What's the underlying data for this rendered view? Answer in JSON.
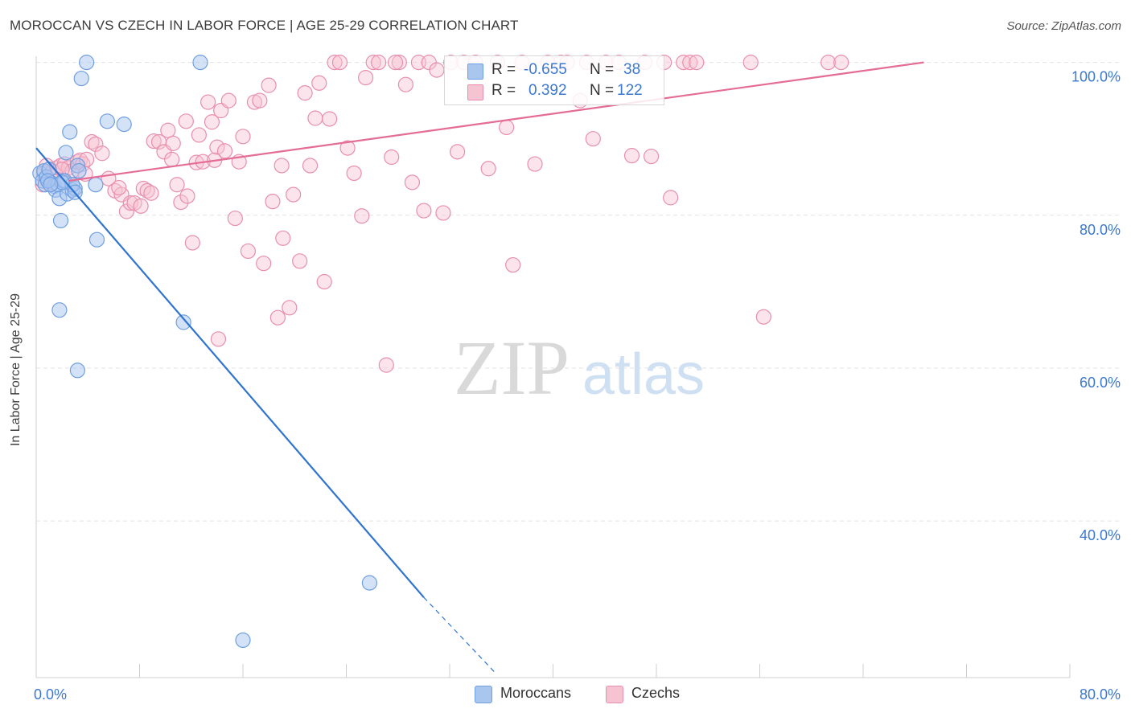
{
  "header": {
    "title": "MOROCCAN VS CZECH IN LABOR FORCE | AGE 25-29 CORRELATION CHART",
    "source": "Source: ZipAtlas.com"
  },
  "legend_box": {
    "rows": [
      {
        "r_label": "R =",
        "r_value": "-0.655",
        "n_label": "N =",
        "n_value": "38"
      },
      {
        "r_label": "R =",
        "r_value": "0.392",
        "n_label": "N =",
        "n_value": "122"
      }
    ]
  },
  "bottom_legend": {
    "moroccans": "Moroccans",
    "czechs": "Czechs"
  },
  "colors": {
    "moroccans_fill": "#a9c6ef",
    "moroccans_stroke": "#6f9fe0",
    "moroccans_line": "#2f74d0",
    "czechs_fill": "#f6c3d3",
    "czechs_stroke": "#e88fae",
    "czechs_line": "#e46c96",
    "axis_text": "#3b78d0",
    "watermark": "#d9d9d9"
  },
  "watermark": {
    "left": "ZIP",
    "right": "atlas"
  },
  "chart_data": {
    "type": "scatter",
    "title": "MOROCCAN VS CZECH IN LABOR FORCE | AGE 25-29 CORRELATION CHART",
    "xlabel": "",
    "ylabel": "In Labor Force | Age 25-29",
    "xlim": [
      0,
      80
    ],
    "ylim": [
      19.5,
      100.8
    ],
    "x_tick_labels": [
      {
        "value": 0,
        "label": "0.0%"
      },
      {
        "value": 80,
        "label": "80.0%"
      }
    ],
    "y_tick_labels": [
      {
        "value": 40,
        "label": "40.0%"
      },
      {
        "value": 60,
        "label": "60.0%"
      },
      {
        "value": 80,
        "label": "80.0%"
      },
      {
        "value": 100,
        "label": "100.0%"
      }
    ],
    "x_minor_ticks": [
      8,
      16,
      24,
      32,
      40,
      48,
      56,
      64,
      72,
      80
    ],
    "grid": true,
    "series": [
      {
        "name": "Moroccans",
        "r": -0.655,
        "n": 38,
        "trend": {
          "x1": 0,
          "y1": 88.8,
          "x2": 30,
          "y2": 30,
          "dash_to_x": 35.6,
          "dash_to_y": 20
        },
        "points": [
          [
            0.3,
            85.5
          ],
          [
            0.5,
            84.5
          ],
          [
            0.6,
            85.8
          ],
          [
            0.7,
            84.0
          ],
          [
            0.8,
            85.0
          ],
          [
            1.0,
            86.0
          ],
          [
            1.2,
            84.2
          ],
          [
            1.4,
            83.8
          ],
          [
            1.5,
            83.3
          ],
          [
            1.7,
            84.0
          ],
          [
            1.8,
            82.2
          ],
          [
            1.9,
            79.3
          ],
          [
            2.1,
            84.5
          ],
          [
            2.2,
            84.5
          ],
          [
            2.3,
            88.2
          ],
          [
            2.4,
            82.8
          ],
          [
            2.6,
            90.9
          ],
          [
            2.8,
            83.3
          ],
          [
            3.0,
            83.5
          ],
          [
            3.2,
            86.5
          ],
          [
            3.3,
            85.8
          ],
          [
            3.5,
            97.9
          ],
          [
            3.9,
            100.0
          ],
          [
            4.6,
            84.0
          ],
          [
            4.7,
            76.8
          ],
          [
            5.5,
            92.3
          ],
          [
            6.8,
            91.9
          ],
          [
            12.7,
            100.0
          ],
          [
            11.4,
            66.0
          ],
          [
            1.8,
            67.6
          ],
          [
            3.2,
            59.7
          ],
          [
            2.8,
            84.0
          ],
          [
            25.8,
            31.9
          ],
          [
            16.0,
            24.4
          ],
          [
            0.9,
            84.5
          ],
          [
            2.0,
            84.3
          ],
          [
            3.0,
            83.0
          ],
          [
            1.1,
            84.0
          ]
        ]
      },
      {
        "name": "Czechs",
        "r": 0.392,
        "n": 122,
        "trend": {
          "x1": 2.5,
          "y1": 84.5,
          "x2": 68.7,
          "y2": 100.0
        },
        "points": [
          [
            0.5,
            84.0
          ],
          [
            0.6,
            85.5
          ],
          [
            0.8,
            86.5
          ],
          [
            1.0,
            86.0
          ],
          [
            1.3,
            85.8
          ],
          [
            1.6,
            86.2
          ],
          [
            1.9,
            86.5
          ],
          [
            2.2,
            86.7
          ],
          [
            2.5,
            86.2
          ],
          [
            2.8,
            85.8
          ],
          [
            3.2,
            87.0
          ],
          [
            3.4,
            87.2
          ],
          [
            3.6,
            86.7
          ],
          [
            3.9,
            87.3
          ],
          [
            4.3,
            89.6
          ],
          [
            4.6,
            89.3
          ],
          [
            5.1,
            88.1
          ],
          [
            5.6,
            84.8
          ],
          [
            6.1,
            83.2
          ],
          [
            6.6,
            82.7
          ],
          [
            7.0,
            80.5
          ],
          [
            7.3,
            81.6
          ],
          [
            7.6,
            81.6
          ],
          [
            8.1,
            81.2
          ],
          [
            8.3,
            83.5
          ],
          [
            8.6,
            83.2
          ],
          [
            8.9,
            82.9
          ],
          [
            9.1,
            89.7
          ],
          [
            9.5,
            89.6
          ],
          [
            9.9,
            88.3
          ],
          [
            10.2,
            91.1
          ],
          [
            10.5,
            87.3
          ],
          [
            10.6,
            89.4
          ],
          [
            10.9,
            84.0
          ],
          [
            11.2,
            81.7
          ],
          [
            11.6,
            92.3
          ],
          [
            11.7,
            82.5
          ],
          [
            12.1,
            76.4
          ],
          [
            12.4,
            86.9
          ],
          [
            12.6,
            90.5
          ],
          [
            12.9,
            87.0
          ],
          [
            13.3,
            94.8
          ],
          [
            13.6,
            92.2
          ],
          [
            14.0,
            88.9
          ],
          [
            14.3,
            93.7
          ],
          [
            14.6,
            88.4
          ],
          [
            14.9,
            95.0
          ],
          [
            15.4,
            79.6
          ],
          [
            15.7,
            87.0
          ],
          [
            16.0,
            90.3
          ],
          [
            16.4,
            75.3
          ],
          [
            16.9,
            94.8
          ],
          [
            17.3,
            95.0
          ],
          [
            17.6,
            73.7
          ],
          [
            18.0,
            97.0
          ],
          [
            18.3,
            81.8
          ],
          [
            18.7,
            66.6
          ],
          [
            19.1,
            77.0
          ],
          [
            19.6,
            67.9
          ],
          [
            19.9,
            82.7
          ],
          [
            20.4,
            74.0
          ],
          [
            20.8,
            96.0
          ],
          [
            21.2,
            86.5
          ],
          [
            21.6,
            92.7
          ],
          [
            21.9,
            97.3
          ],
          [
            22.3,
            71.3
          ],
          [
            22.7,
            92.6
          ],
          [
            23.1,
            100.0
          ],
          [
            23.5,
            100.0
          ],
          [
            24.1,
            88.8
          ],
          [
            24.6,
            85.5
          ],
          [
            25.2,
            79.9
          ],
          [
            25.5,
            98.0
          ],
          [
            26.1,
            100.0
          ],
          [
            26.5,
            100.0
          ],
          [
            27.1,
            60.4
          ],
          [
            27.5,
            87.6
          ],
          [
            28.1,
            100.0
          ],
          [
            28.6,
            97.1
          ],
          [
            29.1,
            84.3
          ],
          [
            29.6,
            100.0
          ],
          [
            30.0,
            80.6
          ],
          [
            30.4,
            100.0
          ],
          [
            31.0,
            99.0
          ],
          [
            31.5,
            80.3
          ],
          [
            32.1,
            100.0
          ],
          [
            32.6,
            88.3
          ],
          [
            33.1,
            100.0
          ],
          [
            34.0,
            100.0
          ],
          [
            35.0,
            86.1
          ],
          [
            35.7,
            100.0
          ],
          [
            36.4,
            91.5
          ],
          [
            36.9,
            73.5
          ],
          [
            37.6,
            100.0
          ],
          [
            38.6,
            86.7
          ],
          [
            39.6,
            100.0
          ],
          [
            40.6,
            100.0
          ],
          [
            41.1,
            100.0
          ],
          [
            42.1,
            95.0
          ],
          [
            42.6,
            100.0
          ],
          [
            43.1,
            90.0
          ],
          [
            44.1,
            100.0
          ],
          [
            45.1,
            100.0
          ],
          [
            46.1,
            87.8
          ],
          [
            47.1,
            100.0
          ],
          [
            47.6,
            87.7
          ],
          [
            48.6,
            100.0
          ],
          [
            49.1,
            82.3
          ],
          [
            50.1,
            100.0
          ],
          [
            50.6,
            100.0
          ],
          [
            51.1,
            100.0
          ],
          [
            55.3,
            100.0
          ],
          [
            56.3,
            66.7
          ],
          [
            61.3,
            100.0
          ],
          [
            62.3,
            100.0
          ],
          [
            19.0,
            86.5
          ],
          [
            14.1,
            63.8
          ],
          [
            27.8,
            100.0
          ],
          [
            2.0,
            86.0
          ],
          [
            3.8,
            85.4
          ],
          [
            13.8,
            87.2
          ],
          [
            6.4,
            83.6
          ]
        ]
      }
    ]
  }
}
